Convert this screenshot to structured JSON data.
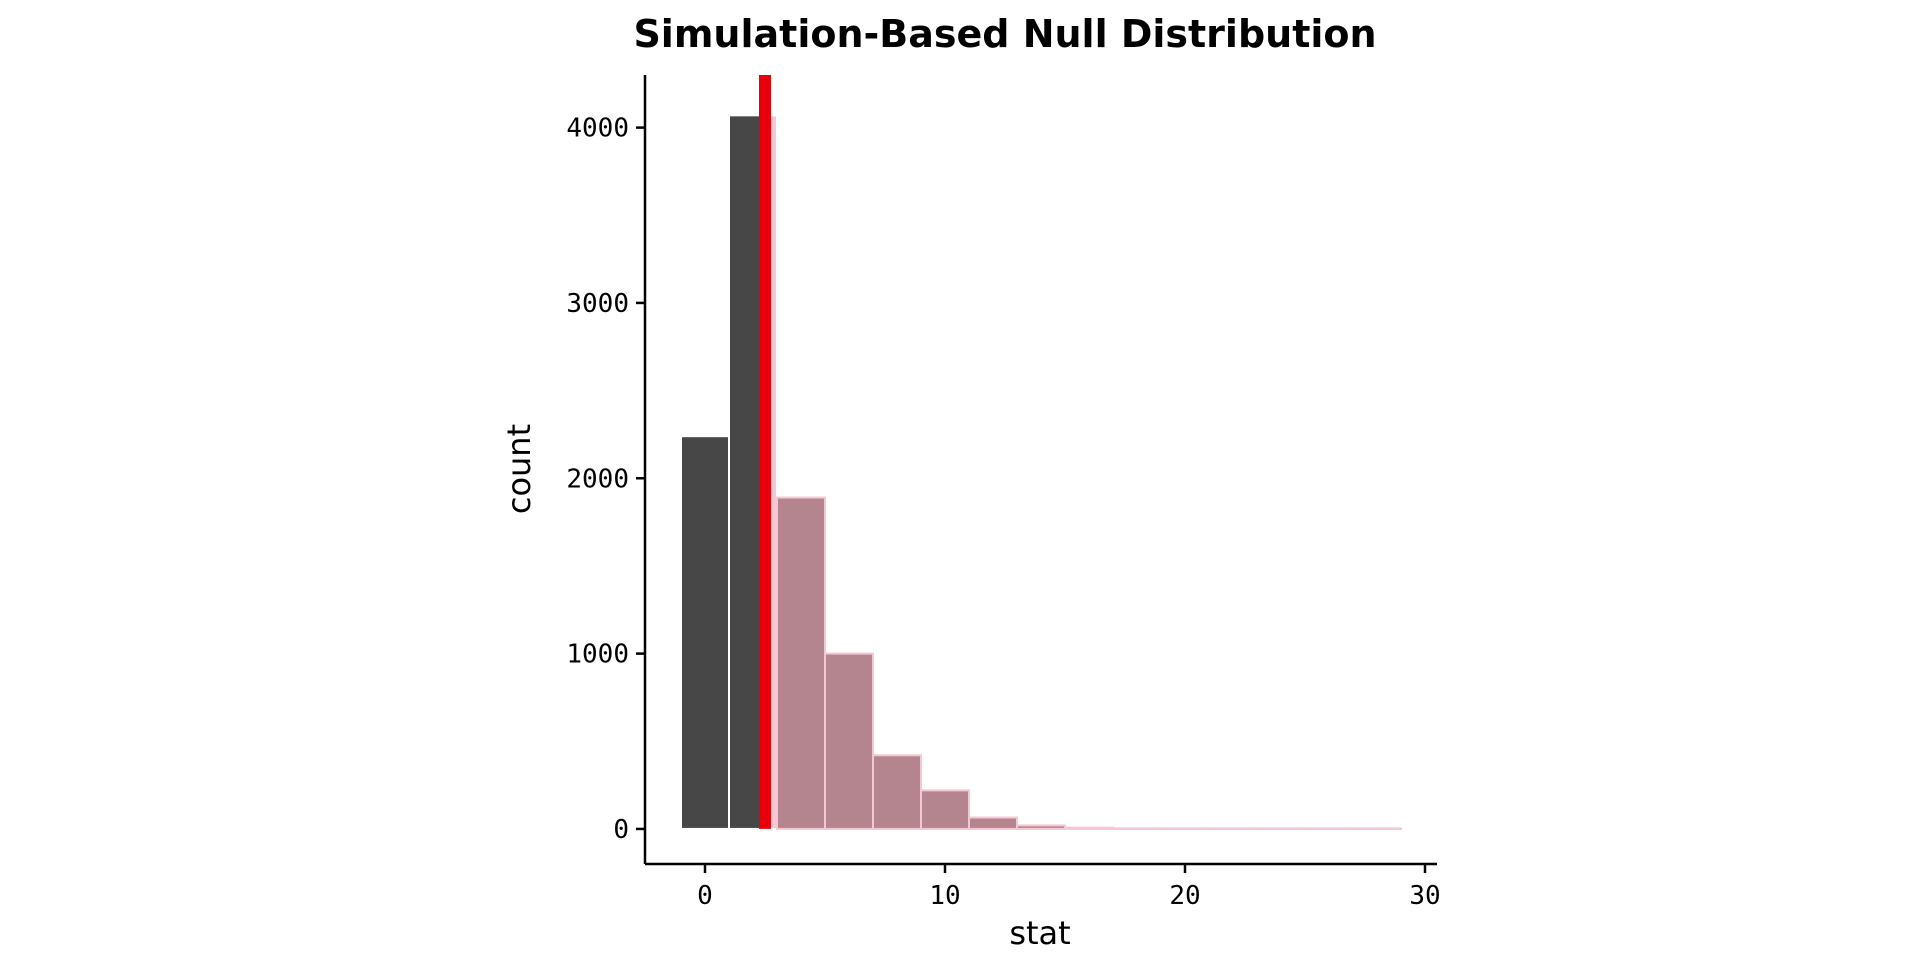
{
  "chart_data": {
    "type": "bar",
    "title": "Simulation-Based Null Distribution",
    "xlabel": "stat",
    "ylabel": "count",
    "xlim": [
      -2.5,
      30.5
    ],
    "ylim": [
      -200,
      4300
    ],
    "x_ticks": [
      0,
      10,
      20,
      30
    ],
    "y_ticks": [
      0,
      1000,
      2000,
      3000,
      4000
    ],
    "bin_width": 2,
    "bins": [
      {
        "x": 0,
        "count": 2240,
        "shaded": false
      },
      {
        "x": 2,
        "count": 4070,
        "shaded": false,
        "partially_shaded": true
      },
      {
        "x": 4,
        "count": 1890,
        "shaded": true
      },
      {
        "x": 6,
        "count": 1000,
        "shaded": true
      },
      {
        "x": 8,
        "count": 420,
        "shaded": true
      },
      {
        "x": 10,
        "count": 220,
        "shaded": true
      },
      {
        "x": 12,
        "count": 65,
        "shaded": true
      },
      {
        "x": 14,
        "count": 20,
        "shaded": true
      },
      {
        "x": 16,
        "count": 7,
        "shaded": true
      },
      {
        "x": 18,
        "count": 3,
        "shaded": true
      },
      {
        "x": 20,
        "count": 2,
        "shaded": true
      },
      {
        "x": 22,
        "count": 0,
        "shaded": true
      },
      {
        "x": 24,
        "count": 0,
        "shaded": true
      },
      {
        "x": 26,
        "count": 1,
        "shaded": true
      },
      {
        "x": 28,
        "count": 1,
        "shaded": true
      }
    ],
    "observed_stat": 2.5,
    "grid": false,
    "colors": {
      "unshaded_bar": "#474747",
      "shaded_bar": "#b5858f",
      "shaded_region": "#f4c7d2",
      "bar_outline": "#ffffff",
      "observed_line": "#e8000b"
    }
  }
}
